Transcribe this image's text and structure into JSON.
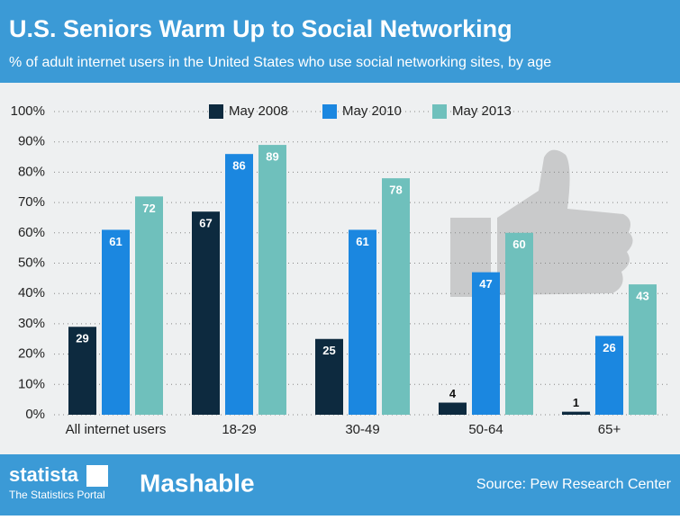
{
  "chart_data": {
    "type": "bar",
    "title": "U.S. Seniors Warm Up to Social Networking",
    "subtitle": "% of adult internet users in the United States who use social networking sites, by age",
    "categories": [
      "All internet users",
      "18-29",
      "30-49",
      "50-64",
      "65+"
    ],
    "series": [
      {
        "name": "May 2008",
        "color": "#0d2a3f",
        "values": [
          29,
          67,
          25,
          4,
          1
        ]
      },
      {
        "name": "May 2010",
        "color": "#1b87e0",
        "values": [
          61,
          86,
          61,
          47,
          26
        ]
      },
      {
        "name": "May 2013",
        "color": "#6fc0bc",
        "values": [
          72,
          89,
          78,
          60,
          43
        ]
      }
    ],
    "ylim": [
      0,
      100
    ],
    "yticks": [
      {
        "value": 0,
        "label": "0%"
      },
      {
        "value": 10,
        "label": "10%"
      },
      {
        "value": 20,
        "label": "20%"
      },
      {
        "value": 30,
        "label": "30%"
      },
      {
        "value": 40,
        "label": "40%"
      },
      {
        "value": 50,
        "label": "50%"
      },
      {
        "value": 60,
        "label": "60%"
      },
      {
        "value": 70,
        "label": "70%"
      },
      {
        "value": 80,
        "label": "80%"
      },
      {
        "value": 90,
        "label": "90%"
      },
      {
        "value": 100,
        "label": "100%"
      }
    ],
    "grid": true,
    "legend": "top"
  },
  "footer": {
    "logo": "statista",
    "logo_tagline": "The Statistics Portal",
    "partner": "Mashable",
    "source": "Source: Pew Research Center"
  }
}
